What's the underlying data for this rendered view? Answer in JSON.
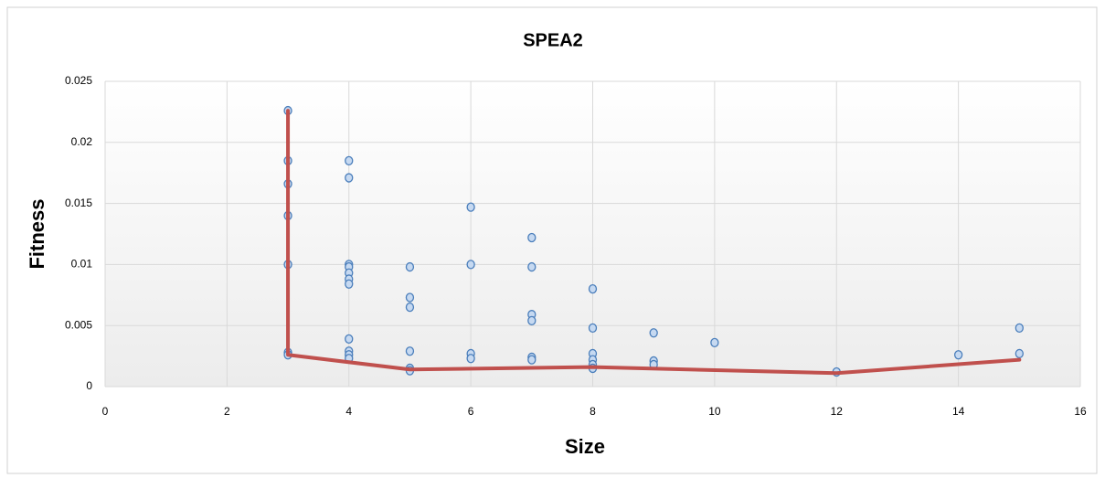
{
  "chart_data": {
    "type": "scatter",
    "title": "SPEA2",
    "xlabel": "Size",
    "ylabel": "Fitness",
    "xlim": [
      0,
      16
    ],
    "xticks": [
      0,
      2,
      4,
      6,
      8,
      10,
      12,
      14,
      16
    ],
    "ylim": [
      0,
      0.025
    ],
    "yticks": [
      0,
      0.005,
      0.01,
      0.015,
      0.02,
      0.025
    ],
    "grid": true,
    "series": [
      {
        "type": "scatter",
        "color": "#4a7ebb",
        "x": [
          3,
          3,
          3,
          3,
          3,
          3,
          3,
          4,
          4,
          4,
          4,
          4,
          4,
          4,
          4,
          4,
          4,
          4,
          5,
          5,
          5,
          5,
          5,
          5,
          6,
          6,
          6,
          6,
          7,
          7,
          7,
          7,
          7,
          7,
          8,
          8,
          8,
          8,
          8,
          8,
          9,
          9,
          9,
          10,
          12,
          14,
          15,
          15
        ],
        "values": [
          0.0226,
          0.0185,
          0.0166,
          0.014,
          0.01,
          0.0028,
          0.0026,
          0.0185,
          0.0171,
          0.01,
          0.0098,
          0.0093,
          0.0088,
          0.0084,
          0.0039,
          0.0029,
          0.0026,
          0.0023,
          0.0098,
          0.0073,
          0.0065,
          0.0029,
          0.0015,
          0.0013,
          0.0147,
          0.01,
          0.0027,
          0.0023,
          0.0122,
          0.0098,
          0.0059,
          0.0054,
          0.0024,
          0.0022,
          0.008,
          0.0048,
          0.0027,
          0.0022,
          0.0018,
          0.0015,
          0.0044,
          0.0021,
          0.0018,
          0.0036,
          0.0012,
          0.0026,
          0.0048,
          0.0027
        ]
      },
      {
        "type": "line",
        "color": "#c0504d",
        "x": [
          3,
          3,
          5,
          8,
          12,
          15
        ],
        "values": [
          0.0226,
          0.0026,
          0.0014,
          0.0016,
          0.0011,
          0.0022
        ]
      }
    ]
  }
}
